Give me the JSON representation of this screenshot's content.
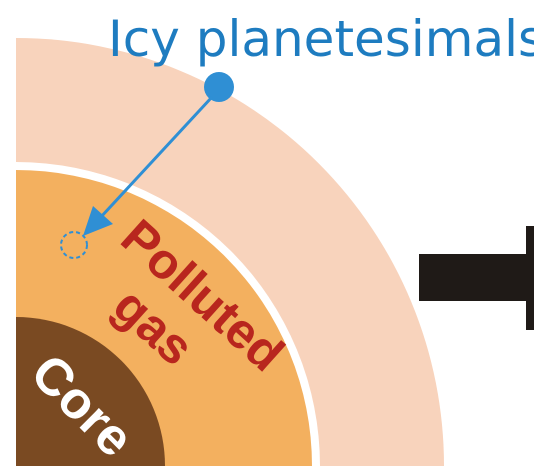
{
  "labels": {
    "icy_planetesimals": "Icy planetesimals",
    "polluted_line1": "Polluted",
    "polluted_line2": "gas",
    "core": "Core"
  },
  "colors": {
    "outer_envelope": "#f8d3bc",
    "polluted_gas_layer": "#f3b05f",
    "core": "#7a4a22",
    "title_text": "#1e7cc0",
    "planetesimal": "#2f8fd4",
    "polluted_text": "#b8261e",
    "core_text": "#ffffff",
    "big_arrow": "#1f1a17"
  }
}
